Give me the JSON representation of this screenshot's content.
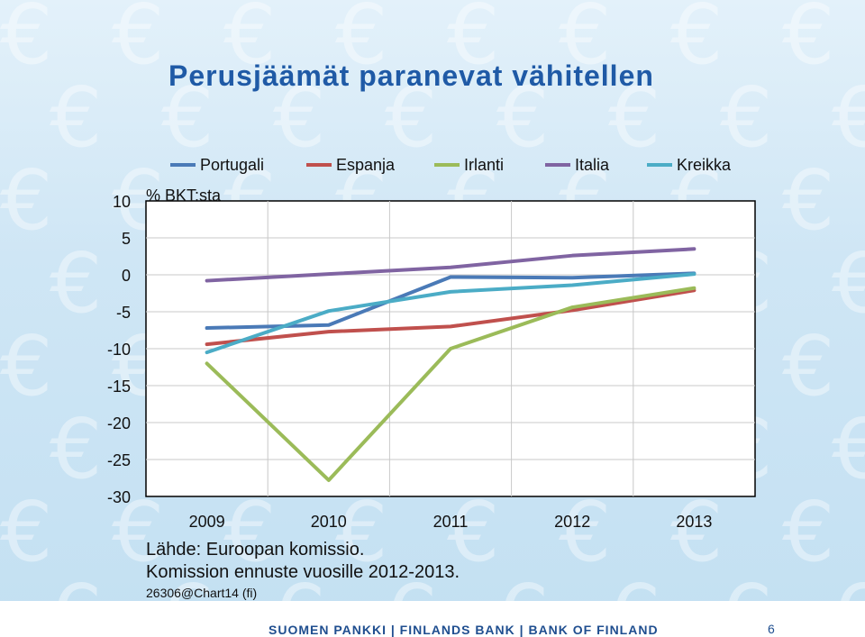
{
  "slide": {
    "title": "Perusjäämät paranevat vähitellen",
    "source": "Lähde: Euroopan komissio.",
    "forecast_note": "Komission ennuste vuosille 2012-2013.",
    "chart_id": "26306@Chart14 (fi)",
    "footer": "SUOMEN PANKKI | FINLANDS BANK | BANK OF FINLAND",
    "page_number": "6",
    "background_motif": "euro-symbol"
  },
  "chart_data": {
    "type": "line",
    "title": "",
    "ylabel": "% BKT:sta",
    "xlabel": "",
    "categories": [
      "2009",
      "2010",
      "2011",
      "2012",
      "2013"
    ],
    "ylim": [
      -30,
      10
    ],
    "yticks": [
      "10",
      "5",
      "0",
      "-5",
      "-10",
      "-15",
      "-20",
      "-25",
      "-30"
    ],
    "grid": true,
    "legend_position": "top",
    "series": [
      {
        "name": "Portugali",
        "color": "#4a7ab7",
        "values": [
          -7.2,
          -6.8,
          -0.3,
          -0.4,
          0.2
        ]
      },
      {
        "name": "Espanja",
        "color": "#c0504d",
        "values": [
          -9.4,
          -7.7,
          -7.0,
          -4.8,
          -2.1
        ]
      },
      {
        "name": "Irlanti",
        "color": "#9bbb59",
        "values": [
          -12.0,
          -27.8,
          -10.0,
          -4.4,
          -1.8
        ]
      },
      {
        "name": "Italia",
        "color": "#8064a2",
        "values": [
          -0.8,
          0.1,
          1.0,
          2.6,
          3.5
        ]
      },
      {
        "name": "Kreikka",
        "color": "#4bacc6",
        "values": [
          -10.5,
          -4.9,
          -2.3,
          -1.4,
          0.1
        ]
      }
    ]
  }
}
